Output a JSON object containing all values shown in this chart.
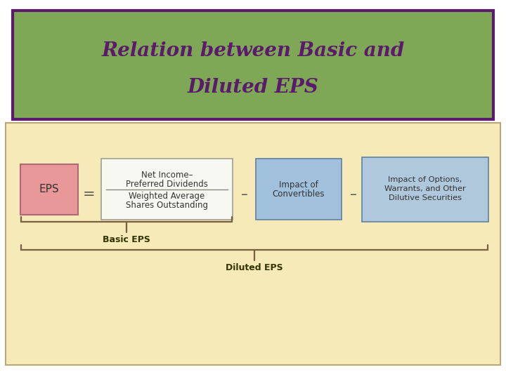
{
  "title_line1": "Relation between Basic and",
  "title_line2": "Diluted EPS",
  "title_color": "#5B1A6B",
  "title_bg_color": "#7EA855",
  "title_border_color": "#5B1A6B",
  "page_bg": "#FFFFFF",
  "diagram_bg": "#F5EAB8",
  "eps_box_color": "#E89898",
  "eps_box_border": "#B06878",
  "fraction_box_color": "#F8F8F2",
  "fraction_box_border": "#A0A090",
  "impact_conv_color": "#A0C0DC",
  "impact_conv_border": "#6080A0",
  "impact_opt_color": "#B0C8DC",
  "impact_opt_border": "#6080A0",
  "brace_color": "#7A6040",
  "text_color": "#333333",
  "basic_eps_label": "Basic EPS",
  "diluted_eps_label": "Diluted EPS"
}
